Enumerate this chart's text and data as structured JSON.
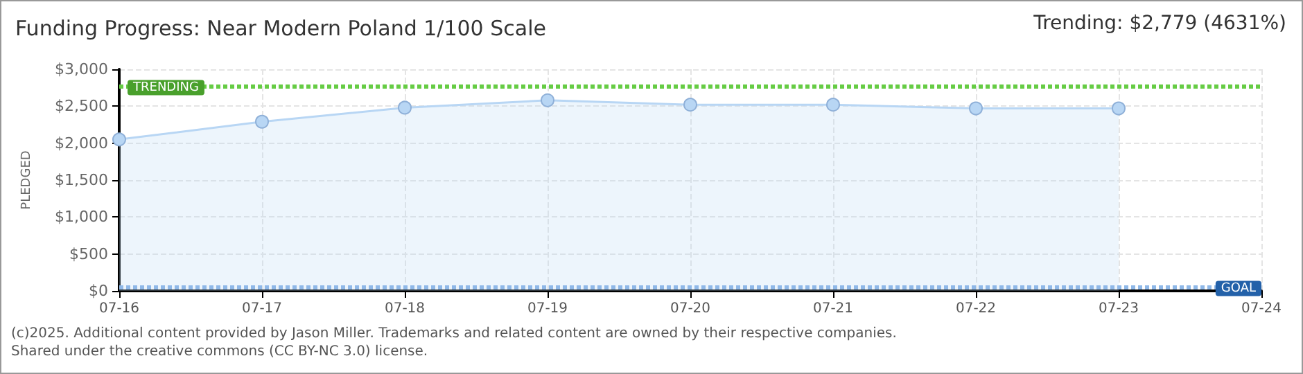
{
  "chart_data": {
    "type": "area",
    "title": "Funding Progress: Near Modern Poland 1/100 Scale",
    "ylabel": "PLEDGED",
    "categories": [
      "07-16",
      "07-17",
      "07-18",
      "07-19",
      "07-20",
      "07-21",
      "07-22",
      "07-23",
      "07-24"
    ],
    "series": [
      {
        "color": "#b8d6f4",
        "values": [
          2050,
          2290,
          2480,
          2580,
          2520,
          2520,
          2470,
          2470,
          null
        ]
      }
    ],
    "ylim": [
      0,
      3000
    ],
    "yticks": [
      {
        "value": 0,
        "label": "$0"
      },
      {
        "value": 500,
        "label": "$500"
      },
      {
        "value": 1000,
        "label": "$1,000"
      },
      {
        "value": 1500,
        "label": "$1,500"
      },
      {
        "value": 2000,
        "label": "$2,000"
      },
      {
        "value": 2500,
        "label": "$2,500"
      },
      {
        "value": 3000,
        "label": "$3,000"
      }
    ],
    "ref_lines": [
      {
        "axis": "y",
        "value": 2779,
        "label": "TRENDING",
        "color": "#66cc44",
        "line_style": "dotted"
      },
      {
        "axis": "y",
        "value": 60,
        "label": "GOAL",
        "color": "#8fb8e8",
        "line_style": "dotted"
      }
    ],
    "annotations": [
      "Trending: $2,779 (4631%)",
      "(c)2025. Additional content provided by Jason Miller. Trademarks and related content are owned by their respective companies.",
      "Shared under the creative commons (CC BY-NC 3.0) license."
    ],
    "grid": true,
    "marker": "circle"
  }
}
